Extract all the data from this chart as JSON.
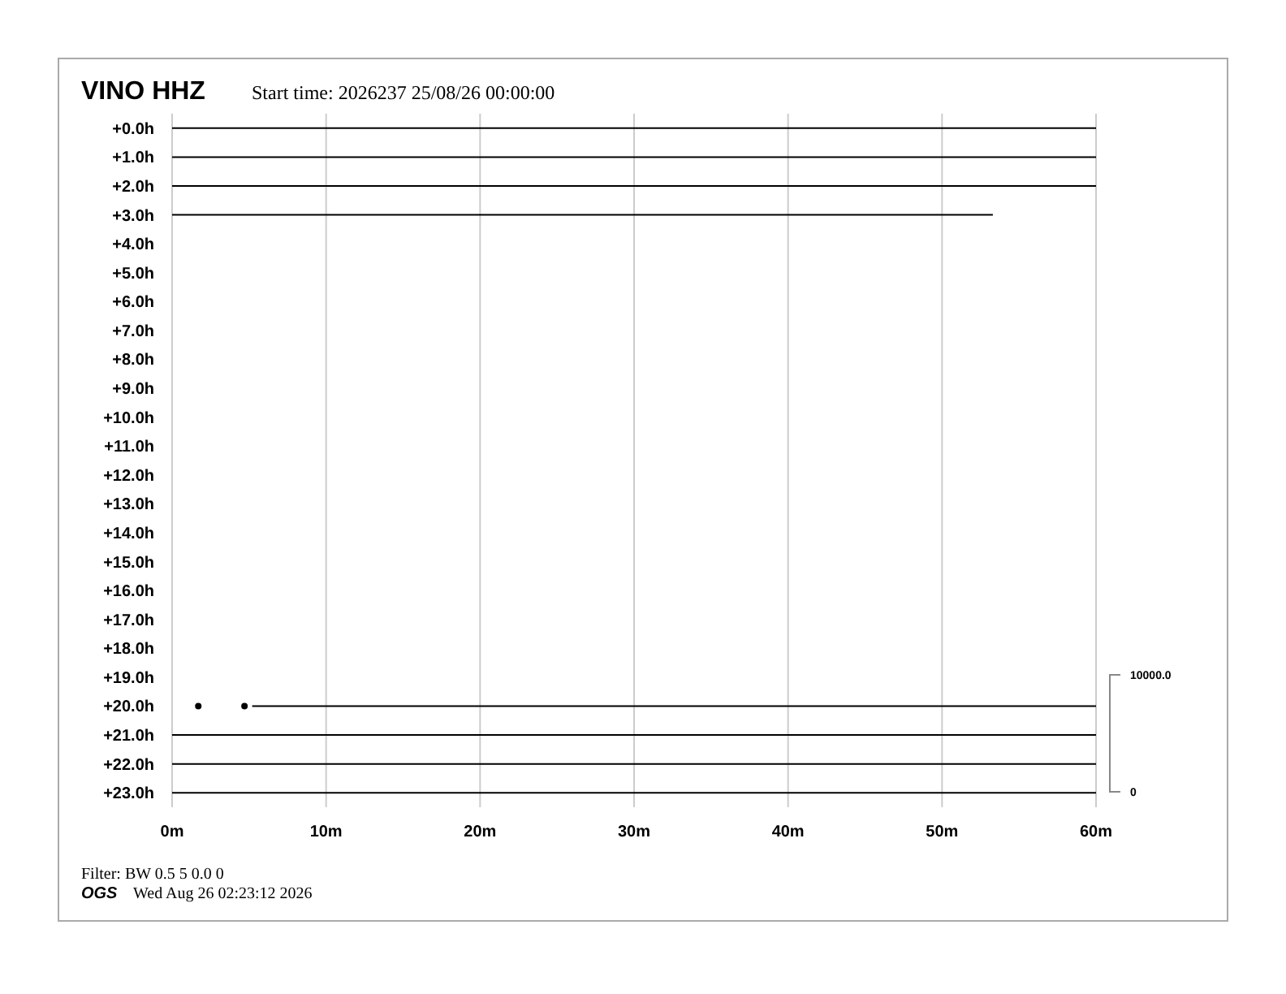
{
  "chart_data": {
    "type": "line",
    "title": "VINO HHZ",
    "subtitle": "Start time: 2026237 25/08/26 00:00:00",
    "xlim": [
      0,
      60
    ],
    "xticks": [
      {
        "value": 0,
        "label": "0m"
      },
      {
        "value": 10,
        "label": "10m"
      },
      {
        "value": 20,
        "label": "20m"
      },
      {
        "value": 30,
        "label": "30m"
      },
      {
        "value": 40,
        "label": "40m"
      },
      {
        "value": 50,
        "label": "50m"
      },
      {
        "value": 60,
        "label": "60m"
      }
    ],
    "ylim": [
      23.5,
      -0.5
    ],
    "yticks": [
      {
        "value": 0,
        "label": "+0.0h"
      },
      {
        "value": 1,
        "label": "+1.0h"
      },
      {
        "value": 2,
        "label": "+2.0h"
      },
      {
        "value": 3,
        "label": "+3.0h"
      },
      {
        "value": 4,
        "label": "+4.0h"
      },
      {
        "value": 5,
        "label": "+5.0h"
      },
      {
        "value": 6,
        "label": "+6.0h"
      },
      {
        "value": 7,
        "label": "+7.0h"
      },
      {
        "value": 8,
        "label": "+8.0h"
      },
      {
        "value": 9,
        "label": "+9.0h"
      },
      {
        "value": 10,
        "label": "+10.0h"
      },
      {
        "value": 11,
        "label": "+11.0h"
      },
      {
        "value": 12,
        "label": "+12.0h"
      },
      {
        "value": 13,
        "label": "+13.0h"
      },
      {
        "value": 14,
        "label": "+14.0h"
      },
      {
        "value": 15,
        "label": "+15.0h"
      },
      {
        "value": 16,
        "label": "+16.0h"
      },
      {
        "value": 17,
        "label": "+17.0h"
      },
      {
        "value": 18,
        "label": "+18.0h"
      },
      {
        "value": 19,
        "label": "+19.0h"
      },
      {
        "value": 20,
        "label": "+20.0h"
      },
      {
        "value": 21,
        "label": "+21.0h"
      },
      {
        "value": 22,
        "label": "+22.0h"
      },
      {
        "value": 23,
        "label": "+23.0h"
      }
    ],
    "grid": "x",
    "marker": "none",
    "line_style": "solid",
    "series": [
      {
        "color": "#000000",
        "x": [
          0,
          60
        ],
        "values": [
          0,
          0
        ]
      },
      {
        "color": "#000000",
        "x": [
          0,
          60
        ],
        "values": [
          1,
          1
        ]
      },
      {
        "color": "#000000",
        "x": [
          0,
          60
        ],
        "values": [
          2,
          2
        ]
      },
      {
        "color": "#000000",
        "x": [
          0,
          53.3
        ],
        "values": [
          3,
          3
        ]
      },
      {
        "color": "#000000",
        "x": [
          5.2,
          60
        ],
        "values": [
          20,
          20
        ]
      },
      {
        "type": "scatter",
        "marker": "circle",
        "color": "#000000",
        "x": [
          1.7,
          4.7
        ],
        "values": [
          20,
          20
        ]
      },
      {
        "color": "#000000",
        "x": [
          0,
          60
        ],
        "values": [
          21,
          21
        ]
      },
      {
        "color": "#000000",
        "x": [
          0,
          60
        ],
        "values": [
          22,
          22
        ]
      },
      {
        "color": "#000000",
        "x": [
          0,
          60
        ],
        "values": [
          23,
          23
        ]
      }
    ],
    "annotations": [
      "Filter: BW 0.5 5 0.0 0",
      "OGS",
      "Wed Aug 26 02:23:12 2026",
      "10000.0",
      "0"
    ]
  }
}
